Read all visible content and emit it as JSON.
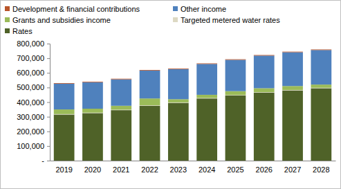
{
  "chart_data": {
    "type": "bar",
    "stacked": true,
    "grid": false,
    "legend": "top-left",
    "categories": [
      "2019",
      "2020",
      "2021",
      "2022",
      "2023",
      "2024",
      "2025",
      "2026",
      "2027",
      "2028"
    ],
    "series": [
      {
        "name": "Rates",
        "color": "#4f6228",
        "values": [
          315000,
          325000,
          345000,
          375000,
          395000,
          425000,
          445000,
          465000,
          480000,
          495000
        ]
      },
      {
        "name": "Targeted metered water rates",
        "color": "#ddd9c3",
        "values": [
          3000,
          3000,
          3000,
          3000,
          3000,
          3000,
          3000,
          3000,
          3000,
          3000
        ]
      },
      {
        "name": "Grants and subsidies income",
        "color": "#9bbb59",
        "values": [
          32000,
          27000,
          27000,
          47000,
          22000,
          22000,
          27000,
          27000,
          27000,
          22000
        ]
      },
      {
        "name": "Other income",
        "color": "#4f81bd",
        "values": [
          176000,
          181000,
          181000,
          191000,
          206000,
          211000,
          214000,
          223000,
          231000,
          236000
        ]
      },
      {
        "name": "Development & financial contributions",
        "color": "#b9552a",
        "values": [
          4000,
          4000,
          4000,
          4000,
          4000,
          4000,
          4000,
          4000,
          4000,
          4000
        ]
      }
    ],
    "ylim": [
      0,
      800000
    ],
    "yticks": [
      {
        "value": 0,
        "label": "-"
      },
      {
        "value": 100000,
        "label": "100,000"
      },
      {
        "value": 200000,
        "label": "200,000"
      },
      {
        "value": 300000,
        "label": "300,000"
      },
      {
        "value": 400000,
        "label": "400,000"
      },
      {
        "value": 500000,
        "label": "500,000"
      },
      {
        "value": 600000,
        "label": "600,000"
      },
      {
        "value": 700000,
        "label": "700,000"
      },
      {
        "value": 800000,
        "label": "800,000"
      }
    ]
  }
}
